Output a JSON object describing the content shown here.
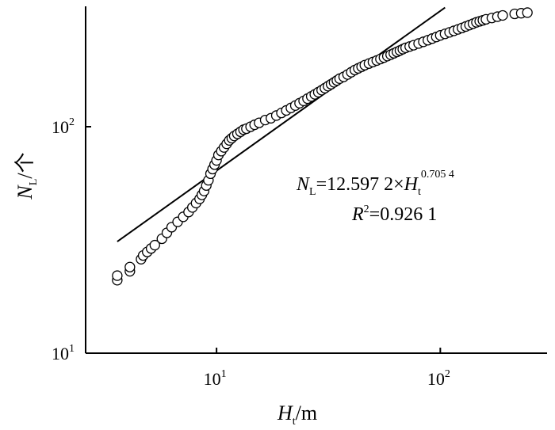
{
  "chart_data": {
    "type": "scatter",
    "x_scale": "log",
    "y_scale": "log",
    "xlim": [
      2.6,
      300
    ],
    "ylim": [
      10,
      340
    ],
    "grid": false,
    "legend": "none",
    "xlabel": {
      "main": "H",
      "sub": "t",
      "unit": "/m"
    },
    "ylabel": {
      "main": "N",
      "sub": "L",
      "unit": "/个"
    },
    "x_ticks": [
      {
        "value": 10,
        "base": "10",
        "exp": "1"
      },
      {
        "value": 100,
        "base": "10",
        "exp": "2"
      }
    ],
    "y_ticks": [
      {
        "value": 10,
        "base": "10",
        "exp": "1"
      },
      {
        "value": 100,
        "base": "10",
        "exp": "2"
      }
    ],
    "fit": {
      "a": 12.5972,
      "b": 0.7054,
      "x_range": [
        3.6,
        105
      ]
    },
    "annotation": {
      "lhs_main": "N",
      "lhs_sub": "L",
      "equation_mid": "=12.597 2×",
      "rhs_main": "H",
      "rhs_sub": "t",
      "exponent": "0.705 4",
      "r2_main": "R",
      "r2_sup": "2",
      "r2_value": "=0.926 1"
    },
    "series": [
      {
        "marker": "open-circle",
        "color": "#000000",
        "x": [
          3.6,
          3.6,
          4.1,
          4.1,
          4.6,
          4.7,
          4.9,
          5.1,
          5.3,
          5.7,
          6.0,
          6.3,
          6.7,
          7.1,
          7.5,
          7.8,
          8.1,
          8.4,
          8.6,
          8.8,
          9.0,
          9.2,
          9.4,
          9.6,
          9.8,
          10.0,
          10.2,
          10.5,
          10.8,
          11.1,
          11.4,
          11.7,
          12.0,
          12.4,
          12.8,
          13.2,
          13.6,
          14.2,
          14.8,
          15.5,
          16.5,
          17.5,
          18.5,
          19.5,
          20.5,
          21.5,
          22.5,
          23.5,
          24.5,
          25.5,
          26.5,
          27.5,
          28.5,
          29.5,
          30.5,
          31.5,
          32.5,
          33.5,
          34.5,
          35.5,
          37.0,
          38.5,
          40.0,
          41.5,
          43.0,
          44.5,
          46.0,
          48.0,
          50.0,
          52.0,
          54.0,
          56.0,
          58.0,
          60.0,
          62.0,
          64.0,
          66.0,
          68.0,
          70.0,
          73.0,
          76.0,
          80.0,
          84.0,
          88.0,
          92.0,
          96.0,
          100.0,
          105.0,
          110.0,
          115.0,
          120.0,
          125.0,
          130.0,
          135.0,
          140.0,
          145.0,
          150.0,
          155.0,
          160.0,
          170.0,
          180.0,
          190.0,
          215.0,
          230.0,
          245.0
        ],
        "y": [
          21,
          22,
          23,
          24,
          26,
          27,
          28,
          29,
          30,
          32,
          34,
          36,
          38,
          40,
          42,
          44,
          46,
          48,
          50,
          52,
          55,
          58,
          62,
          65,
          68,
          71,
          75,
          78,
          81,
          84,
          87,
          89,
          91,
          93,
          95,
          97,
          98,
          100,
          102,
          104,
          107,
          109,
          112,
          115,
          118,
          121,
          124,
          127,
          130,
          133,
          136,
          139,
          142,
          145,
          148,
          151,
          154,
          157,
          160,
          163,
          166,
          170,
          174,
          178,
          181,
          184,
          187,
          190,
          193,
          196,
          199,
          202,
          205,
          208,
          211,
          214,
          217,
          220,
          223,
          226,
          229,
          233,
          237,
          241,
          245,
          249,
          253,
          257,
          261,
          265,
          269,
          273,
          277,
          281,
          285,
          289,
          292,
          295,
          298,
          302,
          306,
          310,
          315,
          317,
          319
        ]
      }
    ]
  }
}
